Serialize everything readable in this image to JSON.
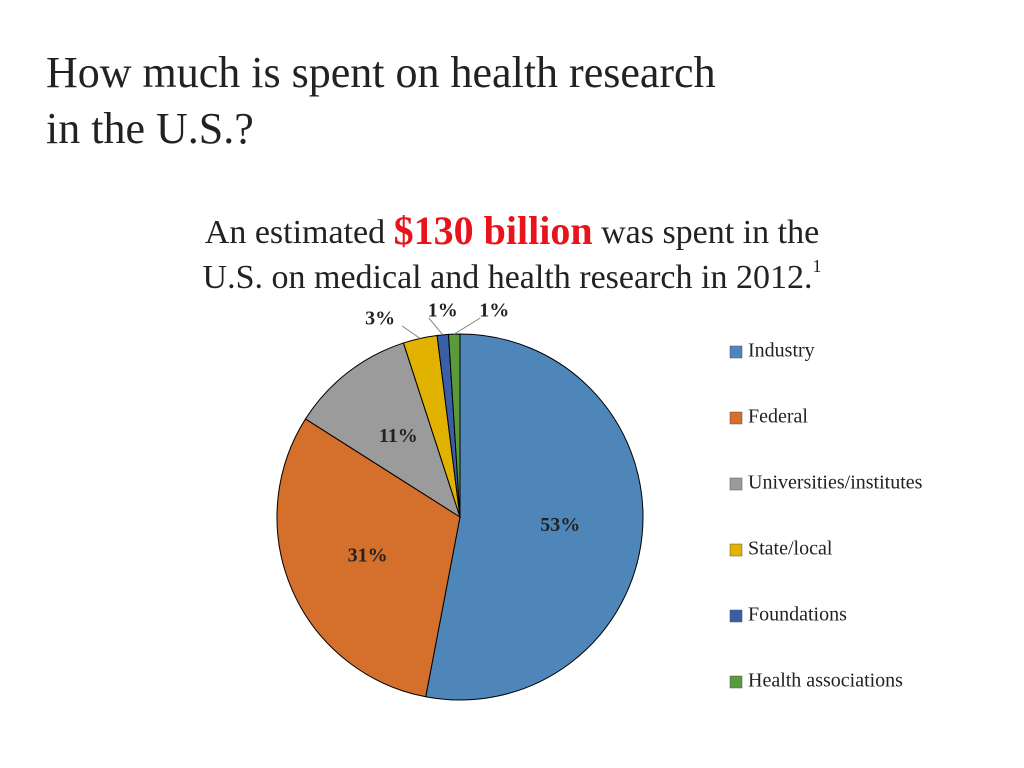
{
  "chart_data": {
    "type": "pie",
    "title_lines": [
      "How much is spent on health research",
      "in the U.S.?"
    ],
    "subtitle": {
      "before": "An estimated",
      "highlight": "$130 billion",
      "after": "was spent in the",
      "line2": "U.S. on medical and health research in 2012.",
      "footnote": "1"
    },
    "categories": [
      "Industry",
      "Federal",
      "Universities/institutes",
      "State/local",
      "Foundations",
      "Health associations"
    ],
    "values": [
      53,
      31,
      11,
      3,
      1,
      1
    ],
    "value_labels": [
      "53%",
      "31%",
      "11%",
      "3%",
      "1%",
      "1%"
    ],
    "colors": [
      "#4f86b9",
      "#d46f2c",
      "#9b9b9b",
      "#e2b200",
      "#3b5ea8",
      "#5a9a3c"
    ],
    "legend": "right"
  }
}
